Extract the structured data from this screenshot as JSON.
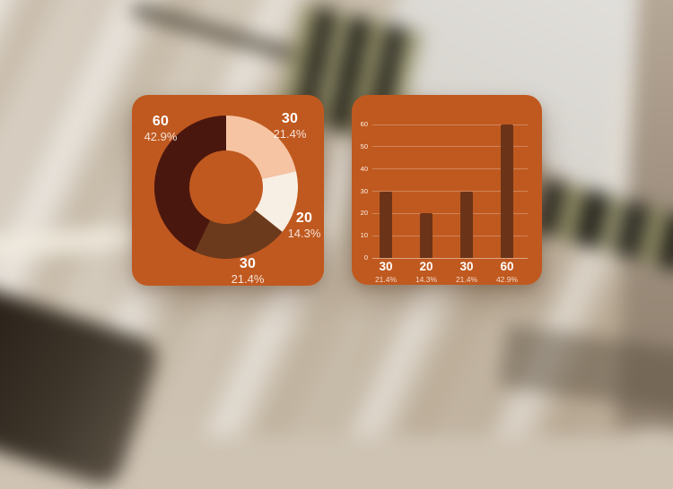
{
  "theme": {
    "card_background": "#c0591f",
    "label_color": "#ffffff",
    "sublabel_color": "rgba(255,255,255,0.8)",
    "grid_color": "rgba(255,255,255,0.26)"
  },
  "chart_data": [
    {
      "type": "pie",
      "subtype": "donut",
      "title": "",
      "direction": "clockwise",
      "start_angle_deg": 0,
      "segments": [
        {
          "label": "30",
          "value": 30,
          "percent": "21.4%",
          "color": "#f6c4a3"
        },
        {
          "label": "20",
          "value": 20,
          "percent": "14.3%",
          "color": "#f8efe4"
        },
        {
          "label": "30",
          "value": 30,
          "percent": "21.4%",
          "color": "#6b3a1d"
        },
        {
          "label": "60",
          "value": 60,
          "percent": "42.9%",
          "color": "#4a170e"
        }
      ],
      "callouts": [
        {
          "position": "top-left",
          "value": "60",
          "percent": "42.9%"
        },
        {
          "position": "top-right",
          "value": "30",
          "percent": "21.4%"
        },
        {
          "position": "right",
          "value": "20",
          "percent": "14.3%"
        },
        {
          "position": "bottom",
          "value": "30",
          "percent": "21.4%"
        }
      ]
    },
    {
      "type": "bar",
      "title": "",
      "categories": [
        "30",
        "20",
        "30",
        "60"
      ],
      "category_sublabels": [
        "21.4%",
        "14.3%",
        "21.4%",
        "42.9%"
      ],
      "values": [
        30,
        20,
        30,
        60
      ],
      "ylim": [
        0,
        60
      ],
      "yticks": [
        0,
        10,
        20,
        30,
        40,
        50,
        60
      ],
      "grid": true,
      "bar_color": "#6b3418",
      "xlabel": "",
      "ylabel": ""
    }
  ]
}
